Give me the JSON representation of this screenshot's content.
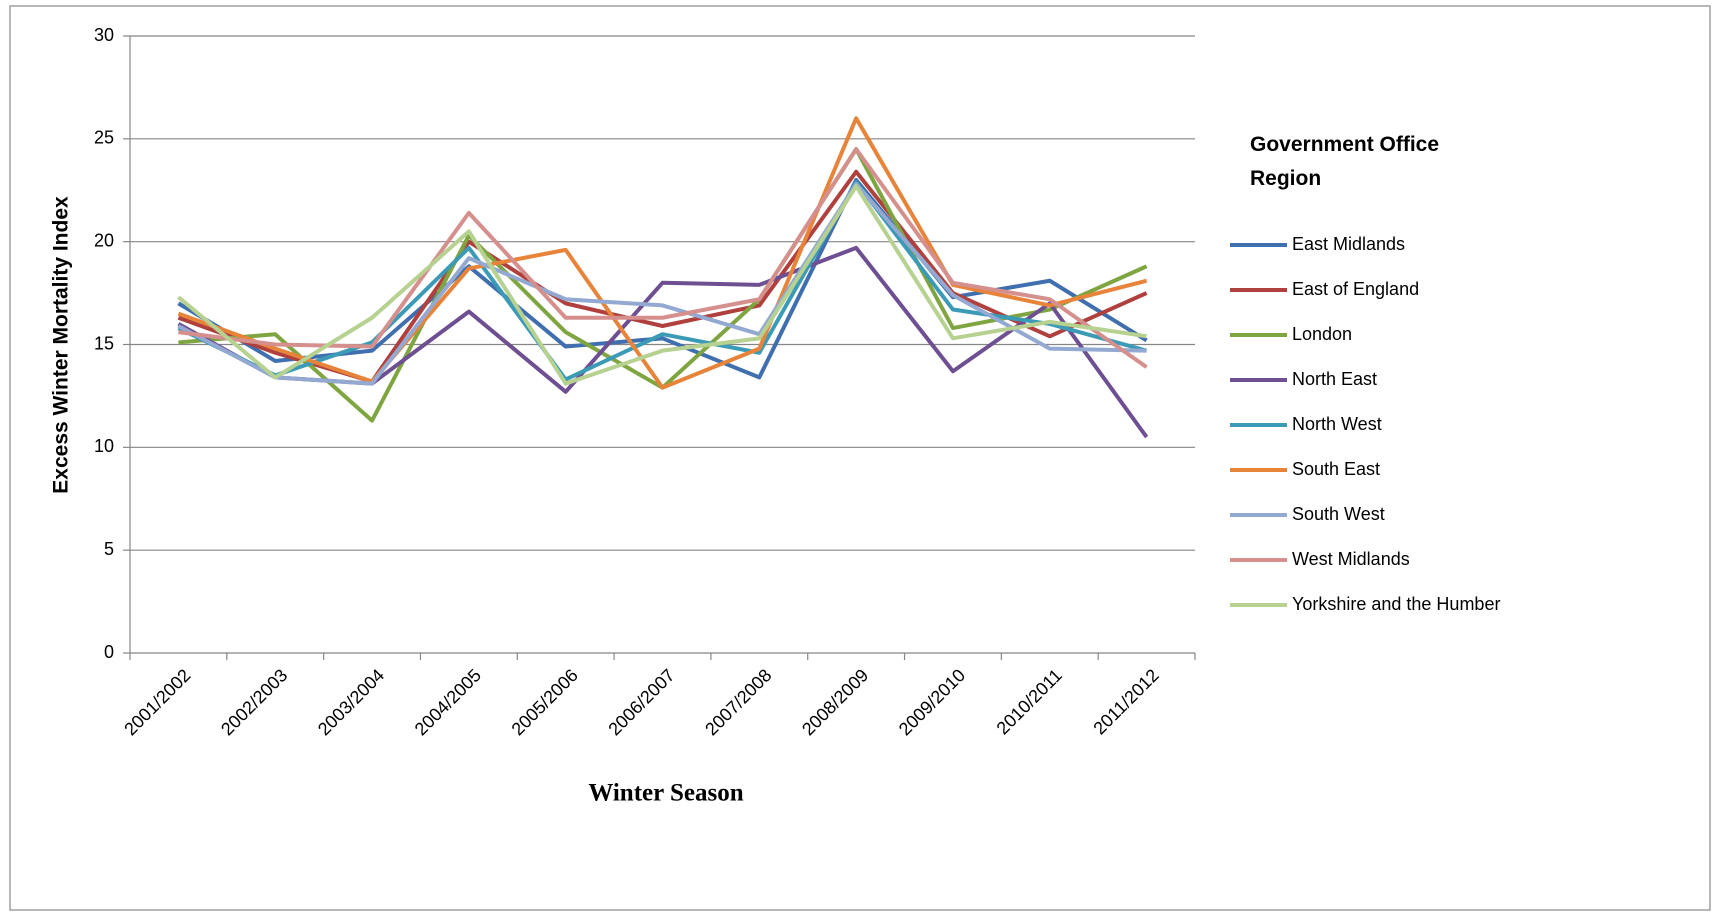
{
  "chart_data": {
    "type": "line",
    "y_label": "Excess Winter Mortality Index",
    "x_label": "Winter Season",
    "legend_title": "Government Office Region",
    "legend": "right",
    "grid": true,
    "categories": [
      "2001/2002",
      "2002/2003",
      "2003/2004",
      "2004/2005",
      "2005/2006",
      "2006/2007",
      "2007/2008",
      "2008/2009",
      "2009/2010",
      "2010/2011",
      "2011/2012"
    ],
    "ylim": [
      0,
      30
    ],
    "yticks": [
      0,
      5,
      10,
      15,
      20,
      25,
      30
    ],
    "series": [
      {
        "name": "East Midlands",
        "color": "#3f6fae",
        "values": [
          17.0,
          14.2,
          14.7,
          18.8,
          14.9,
          15.3,
          13.4,
          23.0,
          17.3,
          18.1,
          15.2
        ]
      },
      {
        "name": "East of England",
        "color": "#b0403d",
        "values": [
          16.3,
          14.6,
          13.2,
          20.0,
          17.0,
          15.9,
          16.9,
          23.4,
          17.5,
          15.4,
          17.5
        ]
      },
      {
        "name": "London",
        "color": "#7fa541",
        "values": [
          15.1,
          15.5,
          11.3,
          20.3,
          15.6,
          12.9,
          17.2,
          24.5,
          15.8,
          16.7,
          18.8
        ]
      },
      {
        "name": "North East",
        "color": "#6d4f92",
        "values": [
          16.0,
          13.4,
          13.1,
          16.6,
          12.7,
          18.0,
          17.9,
          19.7,
          13.7,
          17.0,
          10.5
        ]
      },
      {
        "name": "North West",
        "color": "#3b9bb6",
        "values": [
          15.8,
          13.5,
          15.1,
          19.7,
          13.3,
          15.5,
          14.6,
          22.9,
          16.7,
          16.0,
          14.7
        ]
      },
      {
        "name": "South East",
        "color": "#e8843a",
        "values": [
          16.5,
          14.8,
          13.2,
          18.7,
          19.6,
          12.9,
          14.8,
          26.0,
          17.9,
          16.9,
          18.1
        ]
      },
      {
        "name": "South West",
        "color": "#93a9d1",
        "values": [
          15.9,
          13.4,
          13.1,
          19.2,
          17.2,
          16.9,
          15.5,
          22.8,
          17.4,
          14.8,
          14.7
        ]
      },
      {
        "name": "West Midlands",
        "color": "#d58f8d",
        "values": [
          15.6,
          15.0,
          14.9,
          21.4,
          16.3,
          16.3,
          17.2,
          24.5,
          18.0,
          17.2,
          13.9
        ]
      },
      {
        "name": "Yorkshire and the Humber",
        "color": "#b6d190",
        "values": [
          17.3,
          13.4,
          16.3,
          20.5,
          13.1,
          14.7,
          15.3,
          22.7,
          15.3,
          16.1,
          15.4
        ]
      }
    ]
  }
}
